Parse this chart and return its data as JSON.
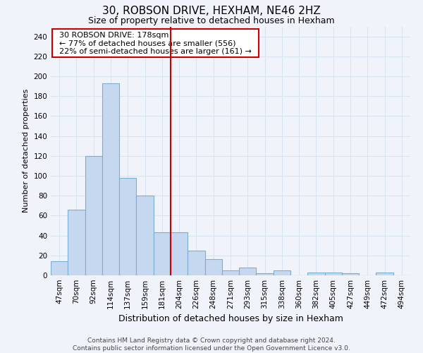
{
  "title_line1": "30, ROBSON DRIVE, HEXHAM, NE46 2HZ",
  "title_line2": "Size of property relative to detached houses in Hexham",
  "xlabel": "Distribution of detached houses by size in Hexham",
  "ylabel": "Number of detached properties",
  "bar_labels": [
    "47sqm",
    "70sqm",
    "92sqm",
    "114sqm",
    "137sqm",
    "159sqm",
    "181sqm",
    "204sqm",
    "226sqm",
    "248sqm",
    "271sqm",
    "293sqm",
    "315sqm",
    "338sqm",
    "360sqm",
    "382sqm",
    "405sqm",
    "427sqm",
    "449sqm",
    "472sqm",
    "494sqm"
  ],
  "bar_heights": [
    14,
    66,
    120,
    193,
    98,
    80,
    43,
    43,
    25,
    16,
    5,
    8,
    2,
    5,
    0,
    3,
    3,
    2,
    0,
    3,
    0
  ],
  "bar_color": "#c5d8f0",
  "bar_edgecolor": "#7aafd4",
  "ylim": [
    0,
    250
  ],
  "yticks": [
    0,
    20,
    40,
    60,
    80,
    100,
    120,
    140,
    160,
    180,
    200,
    220,
    240
  ],
  "vline_x_idx": 6,
  "vline_color": "#cc0000",
  "annotation_text": "  30 ROBSON DRIVE: 178sqm  \n  ← 77% of detached houses are smaller (556)  \n  22% of semi-detached houses are larger (161) →  ",
  "annotation_box_color": "#cc0000",
  "footer_line1": "Contains HM Land Registry data © Crown copyright and database right 2024.",
  "footer_line2": "Contains public sector information licensed under the Open Government Licence v3.0.",
  "background_color": "#f0f4fa",
  "grid_color": "#d8e4f0",
  "title1_fontsize": 11,
  "title2_fontsize": 9,
  "ylabel_fontsize": 8,
  "xlabel_fontsize": 9,
  "tick_fontsize": 7.5,
  "footer_fontsize": 6.5,
  "ann_fontsize": 8
}
